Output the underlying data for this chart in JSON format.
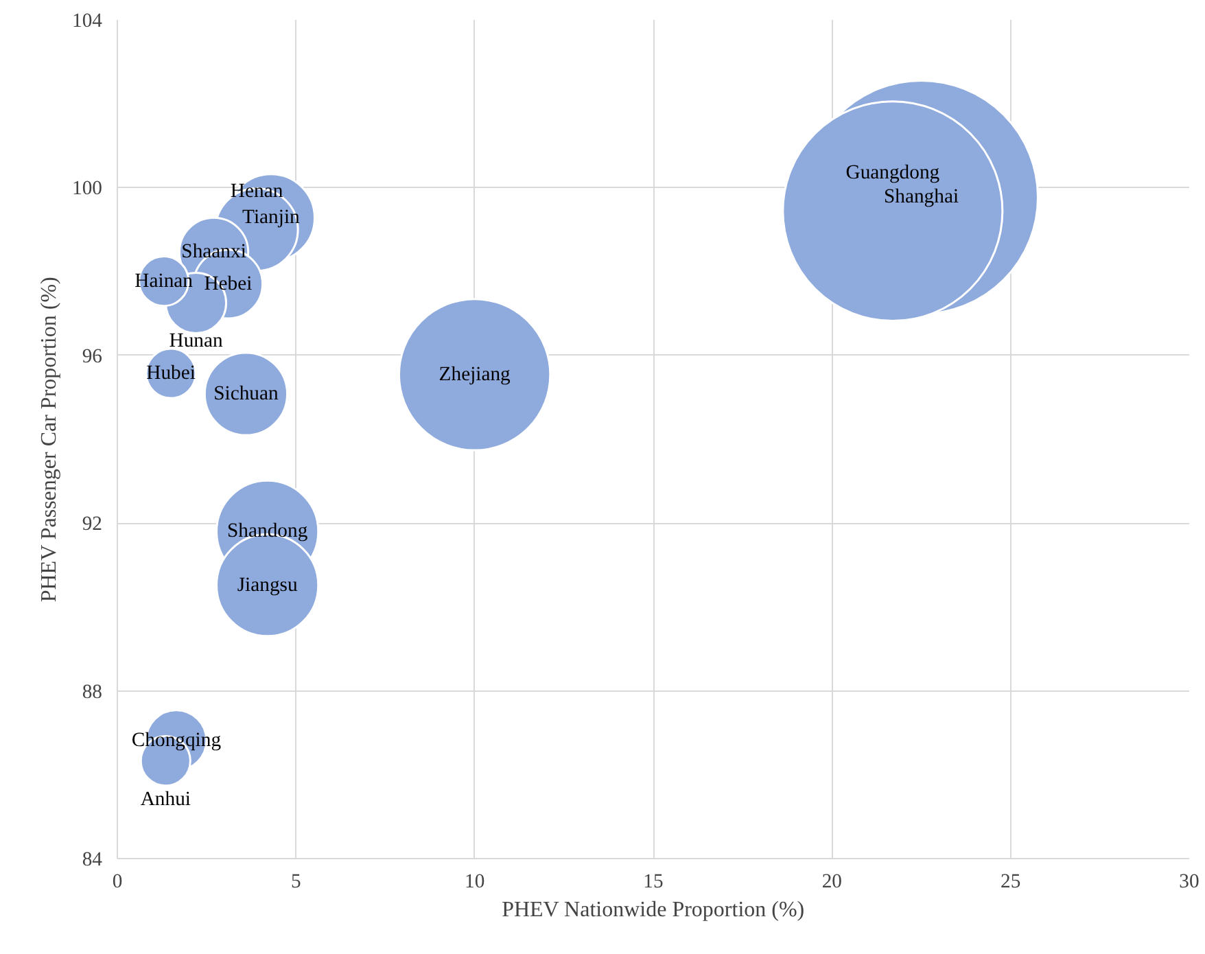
{
  "chart_data": {
    "type": "bubble",
    "xlabel": "PHEV Nationwide Proportion (%)",
    "ylabel": "PHEV Passenger Car Proportion (%)",
    "xlim": [
      0,
      30
    ],
    "xticks": [
      0,
      5,
      10,
      15,
      20,
      25,
      30
    ],
    "ylim": [
      84,
      104
    ],
    "yticks": [
      84,
      88,
      92,
      96,
      100,
      104
    ],
    "grid": true,
    "series": [
      {
        "color": "#8faadc",
        "x": [
          22.5,
          21.7,
          10.0,
          4.2,
          4.2,
          4.3,
          3.9,
          3.6,
          2.7,
          3.1,
          2.2,
          1.65,
          1.3,
          1.5,
          1.35
        ],
        "values": [
          99.77,
          99.44,
          95.54,
          91.8,
          90.52,
          99.28,
          99.0,
          95.08,
          98.46,
          97.7,
          97.25,
          86.82,
          97.77,
          95.57,
          86.33
        ],
        "sizes": [
          1,
          0.886,
          0.42,
          0.19,
          0.19,
          0.14,
          0.125,
          0.125,
          0.087,
          0.087,
          0.067,
          0.067,
          0.045,
          0.045,
          0.045
        ]
      }
    ],
    "annotations": [
      {
        "text": "Shanghai",
        "x": 22.5,
        "y": 99.77
      },
      {
        "text": "Guangdong",
        "x": 21.7,
        "y": 99.44
      },
      {
        "text": "Zhejiang",
        "x": 10.0,
        "y": 95.54
      },
      {
        "text": "Shandong",
        "x": 4.2,
        "y": 91.8
      },
      {
        "text": "Jiangsu",
        "x": 4.2,
        "y": 90.52
      },
      {
        "text": "Tianjin",
        "x": 4.3,
        "y": 99.28
      },
      {
        "text": "Henan",
        "x": 3.9,
        "y": 99.0
      },
      {
        "text": "Sichuan",
        "x": 3.6,
        "y": 95.08
      },
      {
        "text": "Shaanxi",
        "x": 2.7,
        "y": 98.46
      },
      {
        "text": "Hebei",
        "x": 3.1,
        "y": 97.7
      },
      {
        "text": "Hunan",
        "x": 2.2,
        "y": 97.25
      },
      {
        "text": "Chongqing",
        "x": 1.65,
        "y": 86.82
      },
      {
        "text": "Hainan",
        "x": 1.3,
        "y": 97.77
      },
      {
        "text": "Hubei",
        "x": 1.5,
        "y": 95.57
      },
      {
        "text": "Anhui",
        "x": 1.35,
        "y": 86.33
      }
    ]
  }
}
